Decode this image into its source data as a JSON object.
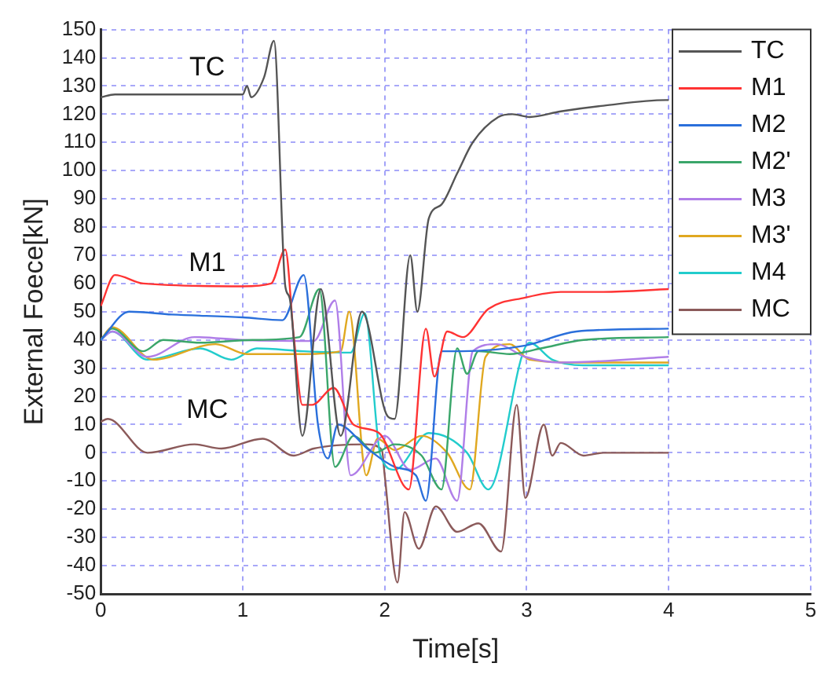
{
  "chart_data": {
    "type": "line",
    "xlabel": "Time[s]",
    "ylabel": "External Foece[kN]",
    "xlim": [
      0,
      5
    ],
    "xticks": [
      0,
      1,
      2,
      3,
      4,
      5
    ],
    "ylim": [
      -50,
      150
    ],
    "yticks": [
      -50,
      -40,
      -30,
      -20,
      -10,
      0,
      10,
      20,
      30,
      40,
      50,
      60,
      70,
      80,
      90,
      100,
      110,
      120,
      130,
      140,
      150
    ],
    "grid": true,
    "legend": "top right",
    "annotations": [
      "TC",
      "M1",
      "MC"
    ],
    "series": [
      {
        "name": "TC",
        "color": "#555555",
        "x": [
          0,
          0.1,
          0.5,
          1.0,
          1.03,
          1.06,
          1.15,
          1.22,
          1.3,
          1.33,
          1.42,
          1.55,
          1.69,
          1.84,
          2.02,
          2.07,
          2.18,
          2.23,
          2.31,
          2.4,
          2.51,
          2.62,
          2.8,
          2.9,
          3.02,
          3.24,
          3.54,
          3.98,
          4.0
        ],
        "values": [
          126,
          127,
          127,
          127,
          130,
          126,
          133,
          146,
          59,
          55,
          6,
          58,
          6,
          50,
          13,
          12,
          70,
          50,
          83,
          88,
          99,
          110,
          119,
          120,
          119,
          121,
          123,
          125,
          125
        ]
      },
      {
        "name": "M1",
        "color": "#ff3333",
        "x": [
          0,
          0.1,
          0.3,
          1.0,
          1.2,
          1.3,
          1.36,
          1.42,
          1.49,
          1.64,
          1.78,
          1.96,
          2.17,
          2.29,
          2.35,
          2.44,
          2.55,
          2.73,
          2.99,
          3.24,
          3.54,
          4.0
        ],
        "values": [
          52,
          63,
          60,
          59,
          60,
          72,
          41,
          17,
          17,
          23,
          10,
          7,
          -13,
          44,
          27,
          43,
          41,
          51,
          55,
          57,
          57,
          58
        ]
      },
      {
        "name": "M2",
        "color": "#2a6fdb",
        "x": [
          0,
          0.2,
          0.5,
          1.0,
          1.28,
          1.43,
          1.53,
          1.6,
          1.67,
          1.89,
          2.07,
          2.22,
          2.29,
          2.4,
          2.54,
          2.99,
          3.35,
          4.0
        ],
        "values": [
          40,
          50,
          49,
          48,
          47,
          63,
          10,
          -2,
          10,
          1,
          -5,
          -8,
          -17,
          36,
          36,
          38,
          43,
          44
        ]
      },
      {
        "name": "M2'",
        "color": "#3aa66a",
        "x": [
          0,
          0.08,
          0.3,
          0.44,
          0.7,
          1.07,
          1.4,
          1.54,
          1.65,
          1.78,
          1.93,
          2.07,
          2.26,
          2.4,
          2.51,
          2.58,
          2.66,
          2.88,
          3.1,
          3.4,
          4.0
        ],
        "values": [
          40,
          44,
          36,
          40,
          39,
          40,
          41,
          58,
          -5,
          6,
          0,
          3,
          -1,
          -13,
          37,
          28,
          36,
          35,
          37,
          40,
          41
        ]
      },
      {
        "name": "M3",
        "color": "#b07ee8",
        "x": [
          0,
          0.08,
          0.33,
          0.66,
          1.0,
          1.5,
          1.65,
          1.76,
          2.0,
          2.18,
          2.36,
          2.51,
          2.62,
          2.79,
          2.99,
          3.24,
          4.0
        ],
        "values": [
          40,
          43,
          34,
          41,
          40,
          39.6,
          54,
          -8,
          6,
          -6,
          -2,
          -17,
          36,
          38.5,
          34,
          32,
          34
        ]
      },
      {
        "name": "M3'",
        "color": "#e0a820",
        "x": [
          0,
          0.08,
          0.37,
          0.81,
          1.03,
          1.43,
          1.69,
          1.75,
          1.87,
          1.95,
          2.07,
          2.26,
          2.44,
          2.6,
          2.71,
          2.88,
          3.02,
          3.35,
          4.0
        ],
        "values": [
          40,
          44.5,
          33,
          38.5,
          35,
          35,
          36,
          50,
          -8,
          5,
          1,
          6,
          0,
          -13,
          34,
          38.5,
          33,
          32,
          32
        ]
      },
      {
        "name": "M4",
        "color": "#22cccc",
        "x": [
          0,
          0.08,
          0.33,
          0.7,
          0.92,
          1.1,
          1.43,
          1.76,
          1.86,
          1.97,
          2.07,
          2.31,
          2.58,
          2.73,
          3.02,
          3.18,
          3.4,
          4.0
        ],
        "values": [
          40,
          43,
          33,
          37,
          33,
          37,
          36,
          35.5,
          49.5,
          -1,
          -6,
          7,
          0,
          -13,
          39,
          33,
          31,
          31
        ]
      },
      {
        "name": "MC",
        "color": "#8b5a5a",
        "x": [
          0,
          0.05,
          0.33,
          0.66,
          0.85,
          1.14,
          1.36,
          1.5,
          1.87,
          1.98,
          2.0,
          2.09,
          2.14,
          2.24,
          2.36,
          2.51,
          2.66,
          2.82,
          2.93,
          2.99,
          3.12,
          3.18,
          3.24,
          3.4,
          3.54,
          4.0
        ],
        "values": [
          11,
          12,
          0,
          3,
          1.5,
          5,
          -1,
          1.5,
          3,
          1,
          -8,
          -46,
          -21,
          -34,
          -19,
          -28,
          -25,
          -35,
          17,
          -16,
          10,
          -1,
          3.5,
          -1,
          0,
          0
        ]
      }
    ]
  }
}
